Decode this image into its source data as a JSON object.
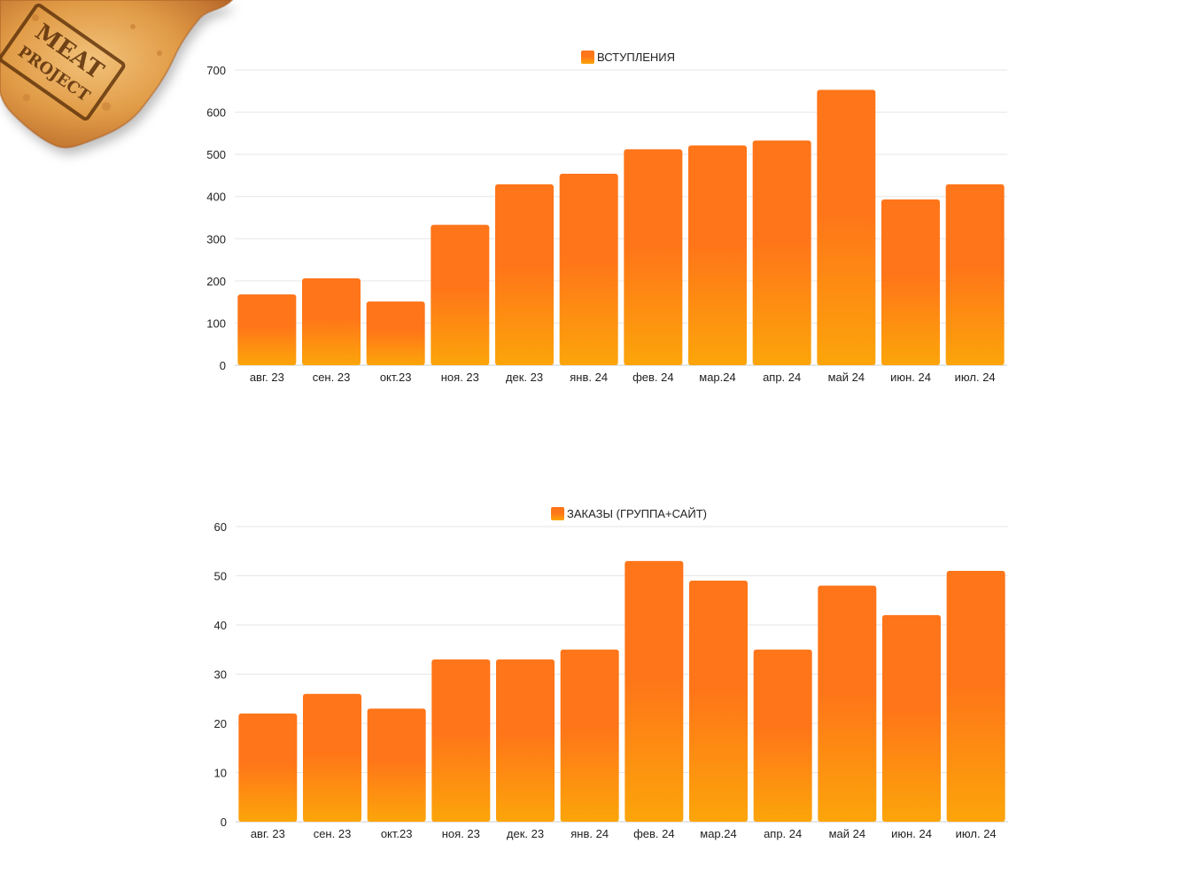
{
  "logo": {
    "lines": [
      "MEAT",
      "PROJECT"
    ],
    "colors": {
      "crust": "#e3a24a",
      "dark": "#8a4a12",
      "stamp": "#5a2e08"
    }
  },
  "colors": {
    "bar_top": "#ff7519",
    "bar_bottom": "#fca50a",
    "grid": "#e6e6e6",
    "axis": "#cccccc",
    "text": "#222222"
  },
  "chart_data": [
    {
      "type": "bar",
      "title": "",
      "legend": [
        "ВСТУПЛЕНИЯ"
      ],
      "legend_position": "top-center",
      "grid": true,
      "categories": [
        "авг. 23",
        "сен. 23",
        "окт.23",
        "ноя. 23",
        "дек. 23",
        "янв. 24",
        "фев. 24",
        "мар.24",
        "апр. 24",
        "май 24",
        "июн. 24",
        "июл. 24"
      ],
      "series": [
        {
          "name": "ВСТУПЛЕНИЯ",
          "values": [
            168,
            206,
            151,
            333,
            429,
            454,
            512,
            521,
            533,
            653,
            393,
            429
          ]
        }
      ],
      "yticks": [
        0,
        100,
        200,
        300,
        400,
        500,
        600,
        700
      ],
      "ylim": [
        0,
        700
      ],
      "xlabel": "",
      "ylabel": ""
    },
    {
      "type": "bar",
      "title": "",
      "legend": [
        "ЗАКАЗЫ (ГРУППА+САЙТ)"
      ],
      "legend_position": "top-center",
      "grid": true,
      "categories": [
        "авг. 23",
        "сен. 23",
        "окт.23",
        "ноя. 23",
        "дек. 23",
        "янв. 24",
        "фев. 24",
        "мар.24",
        "апр. 24",
        "май 24",
        "июн. 24",
        "июл. 24"
      ],
      "series": [
        {
          "name": "ЗАКАЗЫ (ГРУППА+САЙТ)",
          "values": [
            22,
            26,
            23,
            33,
            33,
            35,
            53,
            49,
            35,
            48,
            42,
            51
          ]
        }
      ],
      "yticks": [
        0,
        10,
        20,
        30,
        40,
        50,
        60
      ],
      "ylim": [
        0,
        60
      ],
      "xlabel": "",
      "ylabel": ""
    }
  ]
}
